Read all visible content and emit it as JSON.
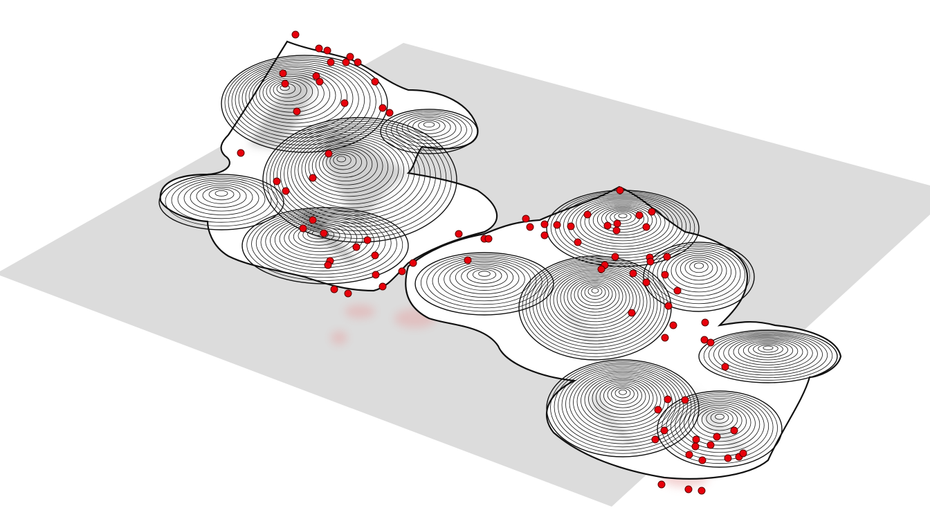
{
  "scene": {
    "ground_plane_color": "#dcdcdc",
    "surface_fill": "#ffffff",
    "contour_line_color": "#111111",
    "shadow_tint": "#c9c9c9",
    "point_fill": "#e8000b",
    "point_stroke": "#5a0000",
    "reflection_tint": "#e6a0a0"
  }
}
